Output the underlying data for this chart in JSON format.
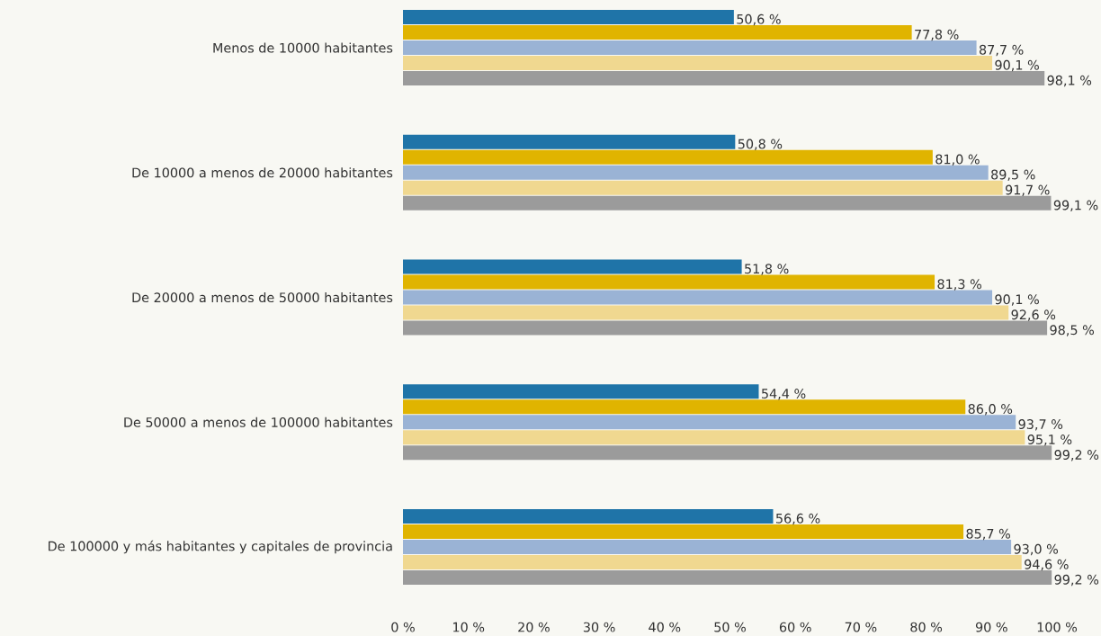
{
  "chart_data": {
    "type": "bar",
    "orientation": "horizontal",
    "categories": [
      "Menos de 10000 habitantes",
      "De 10000 a menos de 20000 habitantes",
      "De 20000 a menos de 50000 habitantes",
      "De 50000 a menos de 100000 habitantes",
      "De 100000 y más habitantes y capitales de provincia"
    ],
    "series": [
      {
        "color": "#1f74a8",
        "values": [
          50.6,
          50.8,
          51.8,
          54.4,
          56.6
        ],
        "value_labels": [
          "50,6 %",
          "50,8 %",
          "51,8 %",
          "54,4 %",
          "56,6 %"
        ]
      },
      {
        "color": "#e0b400",
        "values": [
          77.8,
          81.0,
          81.3,
          86.0,
          85.7
        ],
        "value_labels": [
          "77,8 %",
          "81,0 %",
          "81,3 %",
          "86,0 %",
          "85,7 %"
        ]
      },
      {
        "color": "#9ab3d5",
        "values": [
          87.7,
          89.5,
          90.1,
          93.7,
          93.0
        ],
        "value_labels": [
          "87,7 %",
          "89,5 %",
          "90,1 %",
          "93,7 %",
          "93,0 %"
        ]
      },
      {
        "color": "#f0d890",
        "values": [
          90.1,
          91.7,
          92.6,
          95.1,
          94.6
        ],
        "value_labels": [
          "90,1 %",
          "91,7 %",
          "92,6 %",
          "95,1 %",
          "94,6 %"
        ]
      },
      {
        "color": "#9b9b9b",
        "values": [
          98.1,
          99.1,
          98.5,
          99.2,
          99.2
        ],
        "value_labels": [
          "98,1 %",
          "99,1 %",
          "98,5 %",
          "99,2 %",
          "99,2 %"
        ]
      }
    ],
    "xlim": [
      0,
      100
    ],
    "xticks": [
      {
        "value": 0,
        "label": "0 %"
      },
      {
        "value": 10,
        "label": "10 %"
      },
      {
        "value": 20,
        "label": "20 %"
      },
      {
        "value": 30,
        "label": "30 %"
      },
      {
        "value": 40,
        "label": "40 %"
      },
      {
        "value": 50,
        "label": "50 %"
      },
      {
        "value": 60,
        "label": "60 %"
      },
      {
        "value": 70,
        "label": "70 %"
      },
      {
        "value": 80,
        "label": "80 %"
      },
      {
        "value": 90,
        "label": "90 %"
      },
      {
        "value": 100,
        "label": "100 %"
      }
    ]
  }
}
